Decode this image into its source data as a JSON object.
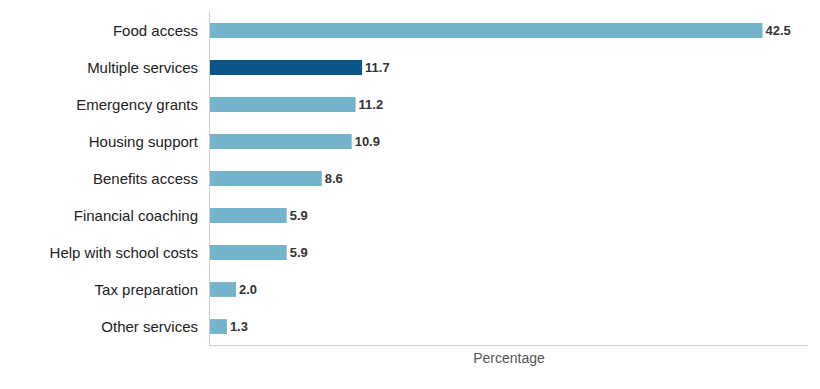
{
  "chart_data": {
    "type": "bar",
    "orientation": "horizontal",
    "categories": [
      "Food access",
      "Multiple services",
      "Emergency grants",
      "Housing support",
      "Benefits access",
      "Financial coaching",
      "Help with school costs",
      "Tax preparation",
      "Other services"
    ],
    "values": [
      42.5,
      11.7,
      11.2,
      10.9,
      8.6,
      5.9,
      5.9,
      2.0,
      1.3
    ],
    "value_labels": [
      "42.5",
      "11.7",
      "11.2",
      "10.9",
      "8.6",
      "5.9",
      "5.9",
      "2.0",
      "1.3"
    ],
    "colors": [
      "#74b3cc",
      "#0b5588",
      "#74b3cc",
      "#74b3cc",
      "#74b3cc",
      "#74b3cc",
      "#74b3cc",
      "#74b3cc",
      "#74b3cc"
    ],
    "x_label": "Percentage",
    "xlim": [
      0,
      46
    ],
    "grid": false,
    "data_labels": true,
    "tick_labels": "y"
  }
}
